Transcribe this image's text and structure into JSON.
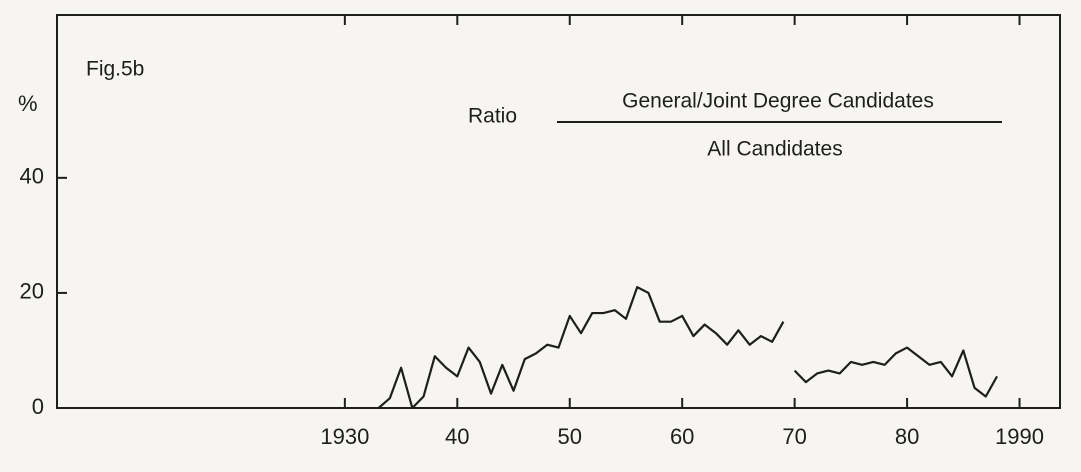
{
  "chart_data": {
    "type": "line",
    "title": "Fig.5b",
    "ylabel": "%",
    "annotation": {
      "prefix": "Ratio",
      "numerator": "General/Joint Degree Candidates",
      "denominator": "All Candidates"
    },
    "xlim": [
      1904.4,
      1993.6
    ],
    "ylim": [
      0,
      68.3
    ],
    "xticks": [
      1930,
      {
        "value": 1940,
        "label": "40"
      },
      {
        "value": 1950,
        "label": "50"
      },
      {
        "value": 1960,
        "label": "60"
      },
      {
        "value": 1970,
        "label": "70"
      },
      {
        "value": 1980,
        "label": "80"
      },
      1990
    ],
    "yticks": [
      0,
      20,
      40
    ],
    "grid": false,
    "color": "#1e1e1e",
    "series": [
      {
        "color": "#1e1e1e",
        "x": [
          1933,
          1934,
          1935,
          1936,
          1937,
          1938,
          1939,
          1940,
          1941,
          1942,
          1943,
          1944,
          1945,
          1946,
          1947,
          1948,
          1949,
          1950,
          1951,
          1952,
          1953,
          1954,
          1955,
          1956,
          1957,
          1958,
          1959,
          1960,
          1961,
          1962,
          1963,
          1964,
          1965,
          1966,
          1967,
          1968,
          1969
        ],
        "values": [
          0,
          1.7,
          7,
          0,
          2,
          9,
          7,
          5.5,
          10.5,
          8,
          2.5,
          7.5,
          3,
          8.5,
          9.5,
          11,
          10.5,
          16,
          13,
          16.5,
          16.5,
          17,
          15.5,
          21,
          20,
          15,
          15,
          16,
          12.5,
          14.5,
          13,
          11,
          13.5,
          11,
          12.5,
          11.5,
          15
        ]
      },
      {
        "color": "#1e1e1e",
        "x": [
          1970,
          1971,
          1972,
          1973,
          1974,
          1975,
          1976,
          1977,
          1978,
          1979,
          1980,
          1981,
          1982,
          1983,
          1984,
          1985,
          1986,
          1987,
          1988
        ],
        "values": [
          6.5,
          4.5,
          6,
          6.5,
          6,
          8,
          7.5,
          8,
          7.5,
          9.5,
          10.5,
          9,
          7.5,
          8,
          5.5,
          10,
          3.5,
          2,
          5.5
        ]
      }
    ]
  }
}
